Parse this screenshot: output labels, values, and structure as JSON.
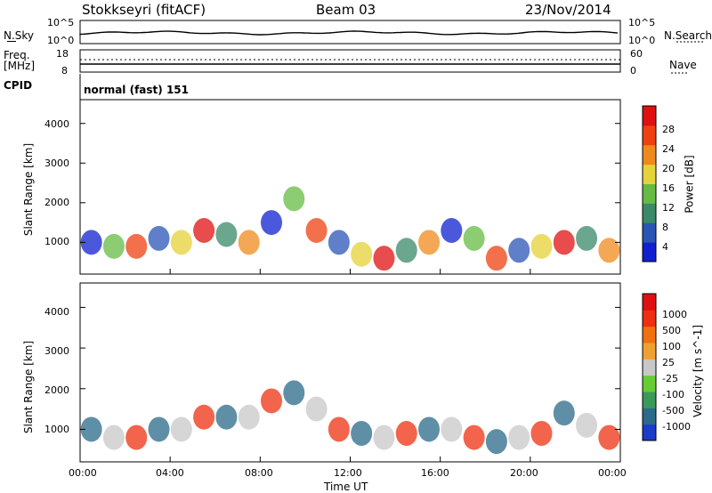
{
  "header": {
    "station": "Stokkseyri (fitACF)",
    "beam": "Beam 03",
    "date": "23/Nov/2014"
  },
  "top_panels": {
    "nsky": {
      "left_label": "N.Sky",
      "left_top": "10^5",
      "left_bottom": "10^0",
      "right_top": "10^5",
      "right_bottom": "10^0",
      "right_label": "N.Search"
    },
    "freq": {
      "left_label": "Freq.",
      "left_unit": "[MHz]",
      "left_top": "18",
      "left_bottom": "8",
      "right_top": "60",
      "right_bottom": "0",
      "right_label": "Nave"
    },
    "cpid": {
      "label": "CPID",
      "value": "normal (fast) 151"
    }
  },
  "chart_data": [
    {
      "type": "heatmap",
      "title": "",
      "ylabel": "Slant Range [km]",
      "ylim": [
        200,
        4600
      ],
      "yticks": [
        "1000",
        "2000",
        "3000",
        "4000"
      ],
      "colorbar_label": "Power [dB]",
      "colorbar_ticks": [
        "4",
        "8",
        "12",
        "16",
        "20",
        "24",
        "28"
      ],
      "colors": [
        "#1020d0",
        "#2a55b5",
        "#3a8a6a",
        "#66bb44",
        "#e6d23a",
        "#f0891c",
        "#ee4010",
        "#e01010"
      ],
      "series": [
        {
          "x_hours": [
            0,
            1,
            2,
            3,
            4,
            5,
            6,
            7,
            8,
            9,
            10,
            11,
            12,
            13,
            14,
            15,
            16,
            17,
            18,
            19,
            20,
            21,
            22,
            23
          ],
          "range_center_km": [
            1000,
            900,
            900,
            1100,
            1000,
            1300,
            1200,
            1000,
            1500,
            2100,
            1300,
            1000,
            700,
            600,
            800,
            1000,
            1300,
            1100,
            600,
            800,
            900,
            1000,
            1100,
            800
          ]
        }
      ]
    },
    {
      "type": "heatmap",
      "title": "",
      "xlabel": "Time UT",
      "ylabel": "Slant Range [km]",
      "ylim": [
        200,
        4600
      ],
      "yticks": [
        "1000",
        "2000",
        "3000",
        "4000"
      ],
      "xticks": [
        "00:00",
        "04:00",
        "08:00",
        "12:00",
        "16:00",
        "20:00",
        "00:00"
      ],
      "colorbar_label": "Velocity [m s^-1]",
      "colorbar_ticks": [
        "1000",
        "500",
        "100",
        "25",
        "-25",
        "-100",
        "-500",
        "-1000"
      ],
      "colors": [
        "#1a3cc8",
        "#2a6a8a",
        "#3a9a5a",
        "#66cc33",
        "#c8c8c8",
        "#f0a030",
        "#f07010",
        "#ee3010",
        "#e01010"
      ],
      "series": [
        {
          "x_hours": [
            0,
            1,
            2,
            3,
            4,
            5,
            6,
            7,
            8,
            9,
            10,
            11,
            12,
            13,
            14,
            15,
            16,
            17,
            18,
            19,
            20,
            21,
            22,
            23
          ],
          "range_center_km": [
            1000,
            800,
            800,
            1000,
            1000,
            1300,
            1300,
            1300,
            1700,
            1900,
            1500,
            1000,
            900,
            800,
            900,
            1000,
            1000,
            800,
            700,
            800,
            900,
            1400,
            1100,
            800
          ]
        }
      ]
    }
  ]
}
